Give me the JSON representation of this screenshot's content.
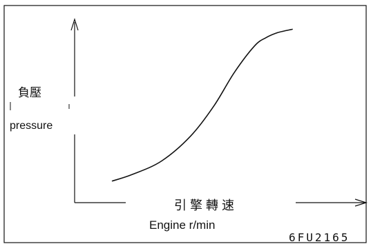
{
  "chart_data": {
    "type": "line",
    "ylabel": "負壓",
    "ylabel_en": "pressure",
    "xlabel": "引擎轉速",
    "xlabel_en": "Engine r/min",
    "figure_code": "6FU2165",
    "grid": false,
    "legend": "none",
    "colors": {
      "line": "#111111",
      "background": "#ffffff"
    },
    "series": [
      {
        "x": [
          0.13,
          0.2,
          0.3,
          0.4,
          0.48,
          0.55,
          0.62,
          0.66,
          0.7,
          0.75
        ],
        "y": [
          0.13,
          0.17,
          0.25,
          0.4,
          0.58,
          0.78,
          0.94,
          0.99,
          1.02,
          1.04
        ]
      }
    ],
    "xlim": [
      0,
      1
    ],
    "ylim": [
      0,
      1.1
    ]
  }
}
